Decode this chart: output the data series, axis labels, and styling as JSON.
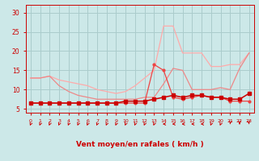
{
  "x": [
    0,
    1,
    2,
    3,
    4,
    5,
    6,
    7,
    8,
    9,
    10,
    11,
    12,
    13,
    14,
    15,
    16,
    17,
    18,
    19,
    20,
    21,
    22,
    23
  ],
  "line1": [
    6.5,
    6.5,
    6.5,
    6.5,
    6.5,
    6.5,
    6.5,
    6.5,
    6.5,
    6.5,
    7.0,
    7.0,
    7.0,
    7.5,
    8.0,
    8.5,
    8.0,
    8.5,
    8.5,
    8.0,
    8.0,
    7.5,
    7.5,
    9.0
  ],
  "line2": [
    6.5,
    6.5,
    6.5,
    6.5,
    6.5,
    6.5,
    6.5,
    6.5,
    6.5,
    6.5,
    6.5,
    6.5,
    6.5,
    16.5,
    15.0,
    8.0,
    7.5,
    8.0,
    8.5,
    8.0,
    8.0,
    7.0,
    7.0,
    7.0
  ],
  "line3": [
    13.0,
    13.0,
    13.5,
    11.0,
    9.5,
    8.5,
    8.0,
    7.5,
    7.5,
    7.5,
    7.5,
    7.5,
    8.0,
    8.0,
    11.5,
    15.5,
    15.0,
    10.0,
    10.0,
    10.0,
    10.5,
    10.0,
    15.5,
    19.5
  ],
  "line4": [
    13.0,
    13.0,
    13.5,
    12.5,
    12.0,
    11.5,
    11.0,
    10.0,
    9.5,
    9.0,
    9.5,
    11.0,
    13.0,
    15.0,
    26.5,
    26.5,
    19.5,
    19.5,
    19.5,
    16.0,
    16.0,
    16.5,
    16.5,
    19.5
  ],
  "bg_color": "#cce8e8",
  "grid_color": "#aacccc",
  "line1_color": "#cc0000",
  "line2_color": "#ee4444",
  "line3_color": "#ee8888",
  "line4_color": "#ffaaaa",
  "axis_color": "#cc0000",
  "xlabel": "Vent moyen/en rafales ( km/h )",
  "ylim": [
    4,
    32
  ],
  "xlim": [
    -0.5,
    23.5
  ],
  "yticks": [
    5,
    10,
    15,
    20,
    25,
    30
  ],
  "xticks": [
    0,
    1,
    2,
    3,
    4,
    5,
    6,
    7,
    8,
    9,
    10,
    11,
    12,
    13,
    14,
    15,
    16,
    17,
    18,
    19,
    20,
    21,
    22,
    23
  ],
  "arrow_directions": [
    225,
    225,
    225,
    225,
    225,
    225,
    225,
    225,
    225,
    225,
    225,
    225,
    225,
    225,
    270,
    270,
    270,
    270,
    270,
    225,
    225,
    200,
    180,
    160
  ]
}
